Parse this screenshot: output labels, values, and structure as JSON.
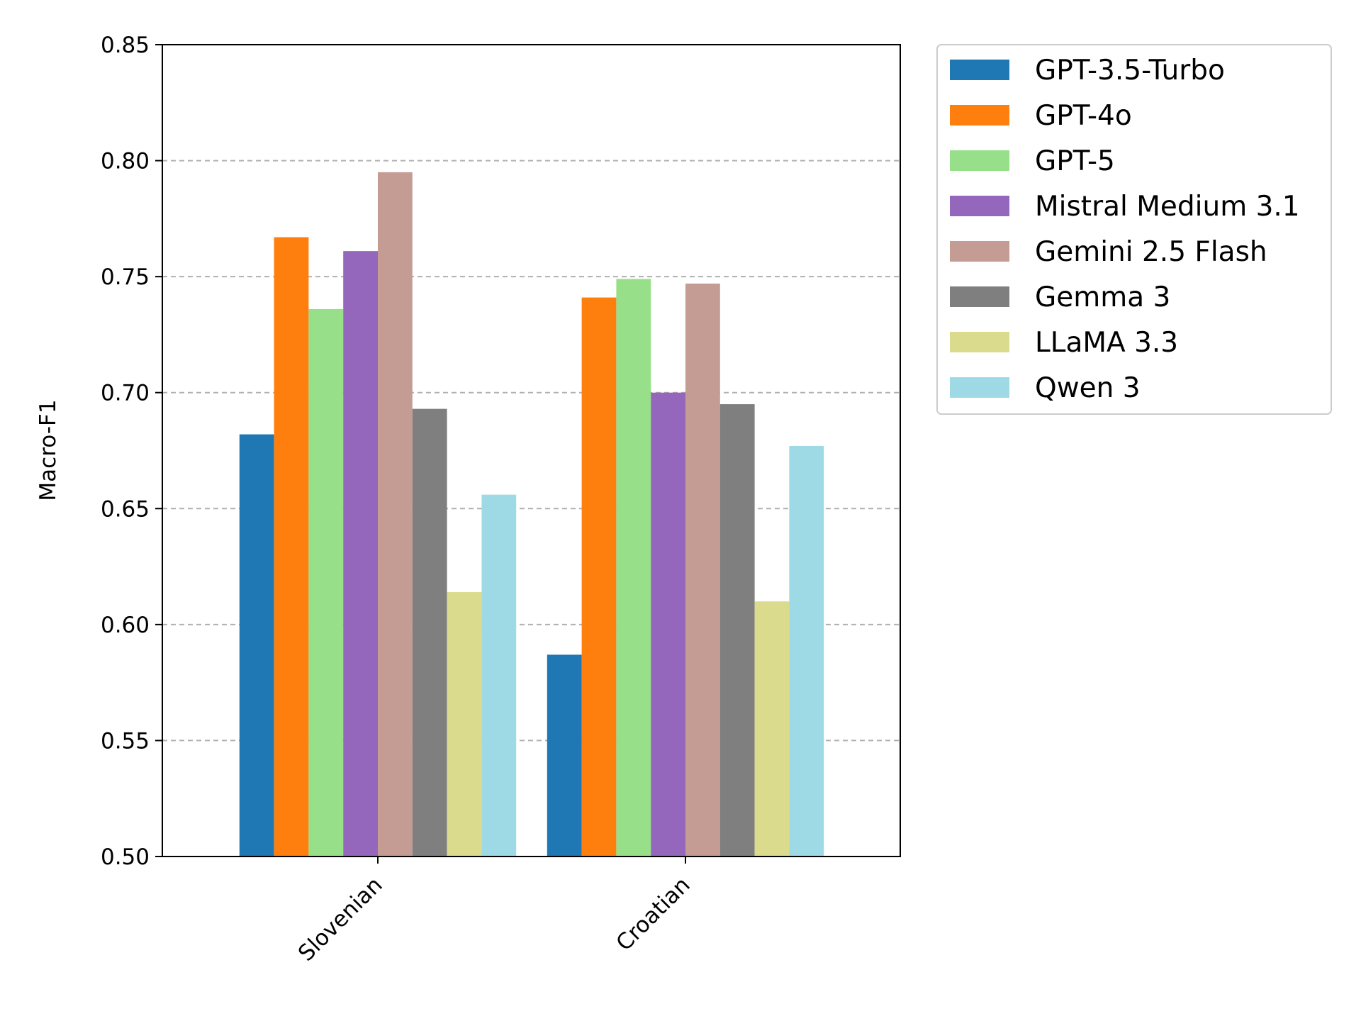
{
  "chart_data": {
    "type": "bar",
    "title": "",
    "xlabel": "",
    "ylabel": "Macro-F1",
    "categories": [
      "Slovenian",
      "Croatian"
    ],
    "ylim": [
      0.5,
      0.85
    ],
    "yticks": [
      "0.50",
      "0.55",
      "0.60",
      "0.65",
      "0.70",
      "0.75",
      "0.80",
      "0.85"
    ],
    "grid": "horizontal dashed",
    "legend_position": "outside-right-top",
    "series": [
      {
        "name": "GPT-3.5-Turbo",
        "color": "#1f77b4",
        "values": [
          0.682,
          0.587
        ]
      },
      {
        "name": "GPT-4o",
        "color": "#ff7f0e",
        "values": [
          0.767,
          0.741
        ]
      },
      {
        "name": "GPT-5",
        "color": "#98df8a",
        "values": [
          0.736,
          0.749
        ]
      },
      {
        "name": "Mistral Medium 3.1",
        "color": "#9467bd",
        "values": [
          0.761,
          0.7
        ]
      },
      {
        "name": "Gemini 2.5 Flash",
        "color": "#c49c94",
        "values": [
          0.795,
          0.747
        ]
      },
      {
        "name": "Gemma 3",
        "color": "#7f7f7f",
        "values": [
          0.693,
          0.695
        ]
      },
      {
        "name": "LLaMA 3.3",
        "color": "#dbdb8d",
        "values": [
          0.614,
          0.61
        ]
      },
      {
        "name": "Qwen 3",
        "color": "#9edae5",
        "values": [
          0.656,
          0.677
        ]
      }
    ]
  }
}
